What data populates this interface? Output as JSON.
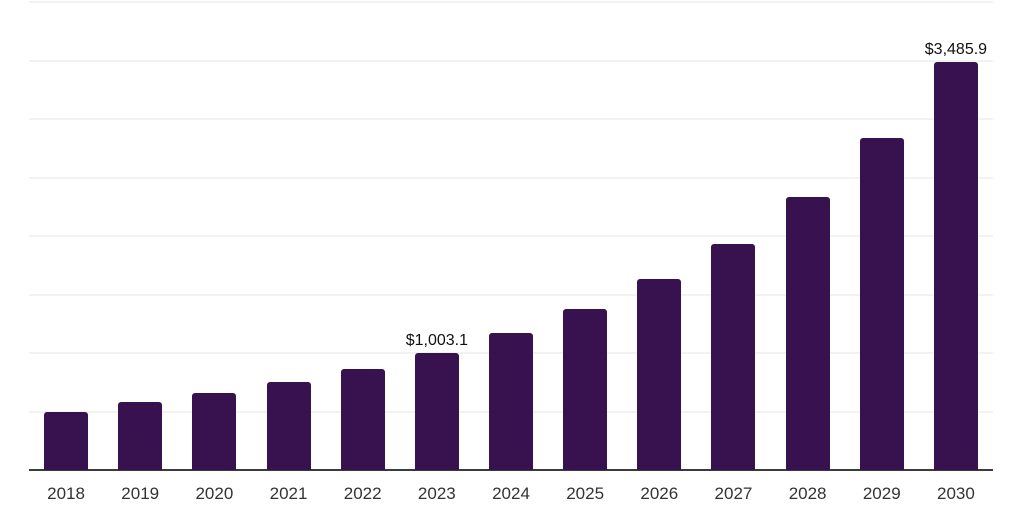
{
  "chart_data": {
    "type": "bar",
    "title": "",
    "xlabel": "",
    "ylabel": "",
    "categories": [
      "2018",
      "2019",
      "2020",
      "2021",
      "2022",
      "2023",
      "2024",
      "2025",
      "2026",
      "2027",
      "2028",
      "2029",
      "2030"
    ],
    "values": [
      496,
      578,
      660,
      753,
      864,
      1003.1,
      1170,
      1375,
      1630,
      1934,
      2336,
      2841,
      3485.9
    ],
    "value_labels": [
      "",
      "",
      "",
      "",
      "",
      "$1,003.1",
      "",
      "",
      "",
      "",
      "",
      "",
      "$3,485.9"
    ],
    "ylim": [
      0,
      4000
    ],
    "gridline_step": 500,
    "grid": true,
    "legend_position": "none",
    "colors": {
      "bar": "#37124F",
      "axis_line": "#3c3c3c",
      "gridline": "#f2f2f2",
      "tick_label": "#333333",
      "value_label": "#111111",
      "background": "#ffffff"
    }
  }
}
